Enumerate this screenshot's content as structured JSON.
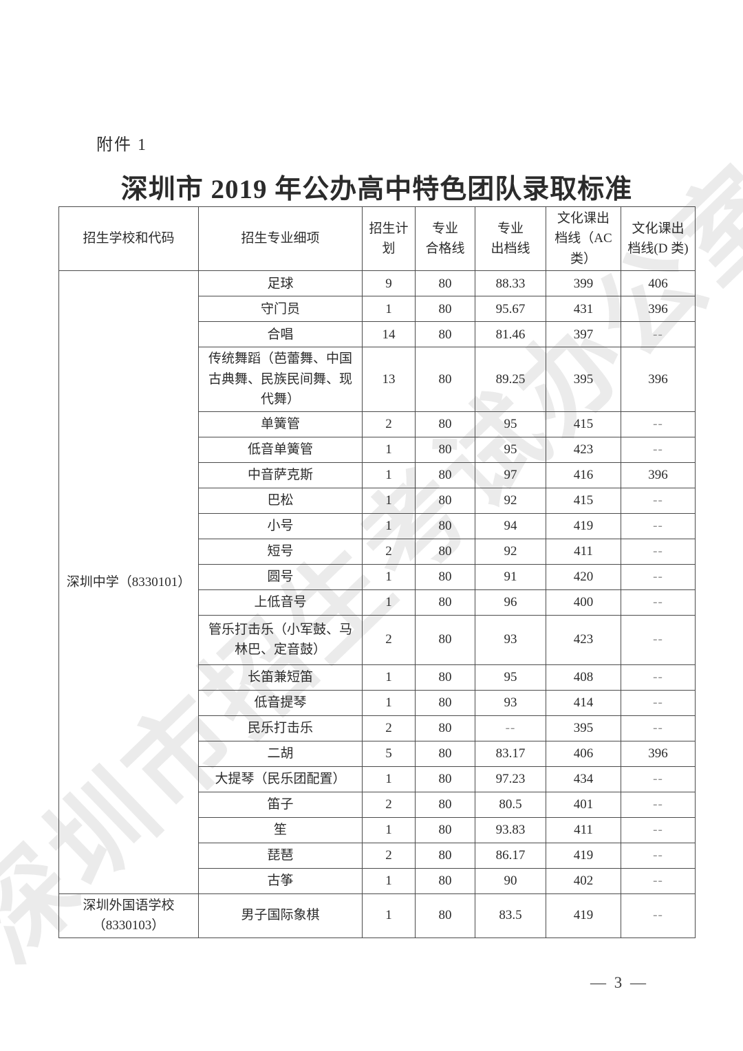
{
  "page": {
    "attachment_label": "附件 1",
    "title": "深圳市 2019 年公办高中特色团队录取标准",
    "watermark": "深圳市招生考试办公室",
    "page_number": "— 3 —"
  },
  "table": {
    "headers": [
      "招生学校和代码",
      "招生专业细项",
      "招生计\n划",
      "专业\n合格线",
      "专业\n出档线",
      "文化课出\n档线（AC\n类）",
      "文化课出\n档线(D 类)"
    ],
    "schools": [
      {
        "name": "深圳中学（8330101）",
        "rows": [
          [
            "足球",
            "9",
            "80",
            "88.33",
            "399",
            "406"
          ],
          [
            "守门员",
            "1",
            "80",
            "95.67",
            "431",
            "396"
          ],
          [
            "合唱",
            "14",
            "80",
            "81.46",
            "397",
            "--"
          ],
          [
            "传统舞蹈（芭蕾舞、中国古典舞、民族民间舞、现代舞）",
            "13",
            "80",
            "89.25",
            "395",
            "396"
          ],
          [
            "单簧管",
            "2",
            "80",
            "95",
            "415",
            "--"
          ],
          [
            "低音单簧管",
            "1",
            "80",
            "95",
            "423",
            "--"
          ],
          [
            "中音萨克斯",
            "1",
            "80",
            "97",
            "416",
            "396"
          ],
          [
            "巴松",
            "1",
            "80",
            "92",
            "415",
            "--"
          ],
          [
            "小号",
            "1",
            "80",
            "94",
            "419",
            "--"
          ],
          [
            "短号",
            "2",
            "80",
            "92",
            "411",
            "--"
          ],
          [
            "圆号",
            "1",
            "80",
            "91",
            "420",
            "--"
          ],
          [
            "上低音号",
            "1",
            "80",
            "96",
            "400",
            "--"
          ],
          [
            "管乐打击乐（小军鼓、马林巴、定音鼓）",
            "2",
            "80",
            "93",
            "423",
            "--"
          ],
          [
            "长笛兼短笛",
            "1",
            "80",
            "95",
            "408",
            "--"
          ],
          [
            "低音提琴",
            "1",
            "80",
            "93",
            "414",
            "--"
          ],
          [
            "民乐打击乐",
            "2",
            "80",
            "--",
            "395",
            "--"
          ],
          [
            "二胡",
            "5",
            "80",
            "83.17",
            "406",
            "396"
          ],
          [
            "大提琴（民乐团配置）",
            "1",
            "80",
            "97.23",
            "434",
            "--"
          ],
          [
            "笛子",
            "2",
            "80",
            "80.5",
            "401",
            "--"
          ],
          [
            "笙",
            "1",
            "80",
            "93.83",
            "411",
            "--"
          ],
          [
            "琵琶",
            "2",
            "80",
            "86.17",
            "419",
            "--"
          ],
          [
            "古筝",
            "1",
            "80",
            "90",
            "402",
            "--"
          ]
        ]
      },
      {
        "name": "深圳外国语学校（8330103）",
        "rows": [
          [
            "男子国际象棋",
            "1",
            "80",
            "83.5",
            "419",
            "--"
          ]
        ]
      }
    ]
  }
}
